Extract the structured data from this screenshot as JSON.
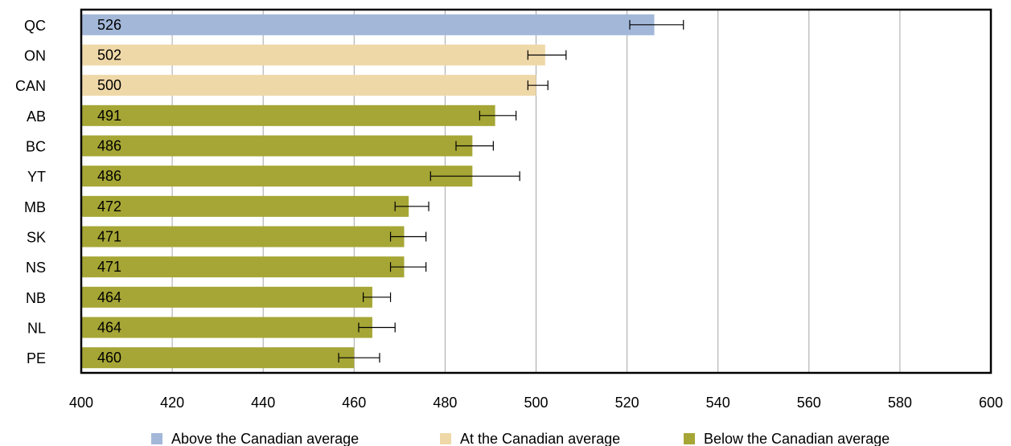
{
  "chart_data": {
    "type": "bar",
    "orientation": "horizontal",
    "title": "",
    "xlabel": "",
    "ylabel": "",
    "xlim": [
      400,
      600
    ],
    "x_ticks": [
      400,
      420,
      440,
      460,
      480,
      500,
      520,
      540,
      560,
      580,
      600
    ],
    "grid": "vertical",
    "legend_position": "bottom",
    "colors": {
      "above": "#a3b8d9",
      "at": "#efd8a8",
      "below": "#a6a636"
    },
    "legend": [
      {
        "key": "above",
        "label": "Above the Canadian average"
      },
      {
        "key": "at",
        "label": "At the Canadian average"
      },
      {
        "key": "below",
        "label": "Below the Canadian average"
      }
    ],
    "categories": [
      "QC",
      "ON",
      "CAN",
      "AB",
      "BC",
      "YT",
      "MB",
      "SK",
      "NS",
      "NB",
      "NL",
      "PE"
    ],
    "values": [
      526,
      502,
      500,
      491,
      486,
      486,
      472,
      471,
      471,
      464,
      464,
      460
    ],
    "value_labels": [
      "526",
      "502",
      "500",
      "491",
      "486",
      "486",
      "472",
      "471",
      "471",
      "464",
      "464",
      "460"
    ],
    "error_low": [
      520.6,
      498.2,
      498.2,
      487.6,
      482.4,
      476.8,
      469.0,
      468.0,
      468.0,
      462.0,
      461.0,
      456.6
    ],
    "error_high": [
      532.4,
      506.6,
      502.6,
      495.6,
      490.6,
      496.4,
      476.4,
      475.8,
      475.8,
      468.0,
      469.0,
      465.6
    ],
    "status": [
      "above",
      "at",
      "at",
      "below",
      "below",
      "below",
      "below",
      "below",
      "below",
      "below",
      "below",
      "below"
    ]
  }
}
